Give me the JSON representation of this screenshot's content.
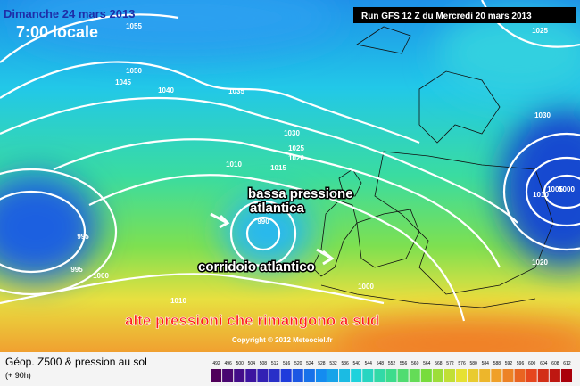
{
  "header": {
    "date": "Dimanche 24 mars 2013",
    "time": "7:00 locale",
    "run": "Run GFS 12 Z du Mercredi 20 mars 2013"
  },
  "annotations": {
    "low": [
      "bassa pressione",
      "atlantica"
    ],
    "corridor": "corridoio atlantico",
    "south": "alte pressioni che rimangono a sud"
  },
  "isobars": [
    "1055",
    "1050",
    "1045",
    "1040",
    "1035",
    "1030",
    "1025",
    "1020",
    "1015",
    "1010",
    "990",
    "995",
    "995",
    "1000",
    "1010",
    "1000",
    "1025",
    "1030",
    "1010",
    "1005",
    "1000",
    "1020"
  ],
  "copyright": "Copyright © 2012 Meteociel.fr",
  "legend": {
    "title": "Géop. Z500 & pression au sol",
    "lead": "(+ 90h)",
    "scale": [
      492,
      496,
      500,
      504,
      508,
      512,
      516,
      520,
      524,
      528,
      532,
      536,
      540,
      544,
      548,
      552,
      556,
      560,
      564,
      568,
      572,
      576,
      580,
      584,
      588,
      592,
      596,
      600,
      604,
      608,
      612
    ]
  }
}
